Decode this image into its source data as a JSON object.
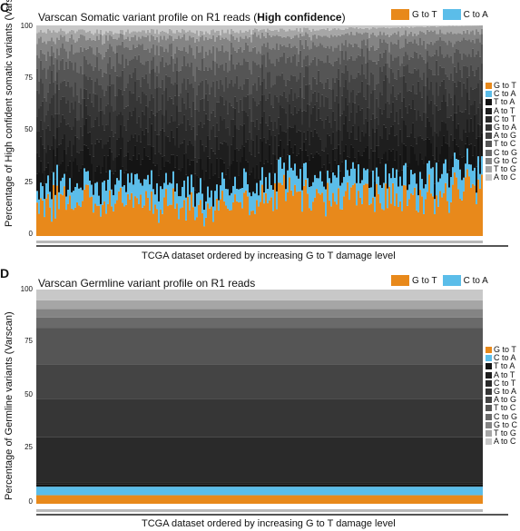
{
  "chart_data": [
    {
      "panel": "C",
      "type": "area",
      "title_main": "Varscan Somatic variant profile on R1 reads (",
      "title_bold": "High confidence",
      "title_end": ")",
      "xlabel": "TCGA dataset ordered by increasing G to T damage level",
      "ylabel": "Percentage of High confident somatic variants (Varscan)",
      "ylim": [
        0,
        100
      ],
      "yticks": [
        0,
        25,
        50,
        75,
        100
      ],
      "top_legend": [
        "G to T",
        "C to A"
      ],
      "side_legend": [
        "G to T",
        "C to A",
        "T to A",
        "A to T",
        "C to T",
        "G to A",
        "A to G",
        "T to C",
        "C to G",
        "G to C",
        "T to G",
        "A to C"
      ],
      "series_colors": [
        "#e8891b",
        "#5bbde9",
        "#141414",
        "#1e1e1e",
        "#2a2a2a",
        "#363636",
        "#444444",
        "#555555",
        "#6a6a6a",
        "#848484",
        "#a6a6a6",
        "#c8c8c8"
      ],
      "series": [
        {
          "name": "G to T",
          "mean_values": [
            14,
            16,
            13,
            20,
            18,
            22
          ]
        },
        {
          "name": "C to A",
          "mean_values": [
            8,
            9,
            8,
            9,
            10,
            10
          ]
        },
        {
          "name": "T to A",
          "mean_values": [
            10,
            10,
            11,
            9,
            10,
            10
          ]
        },
        {
          "name": "A to T",
          "mean_values": [
            10,
            10,
            10,
            9,
            10,
            10
          ]
        },
        {
          "name": "C to T",
          "mean_values": [
            10,
            10,
            10,
            10,
            10,
            9
          ]
        },
        {
          "name": "G to A",
          "mean_values": [
            10,
            9,
            10,
            9,
            10,
            9
          ]
        },
        {
          "name": "A to G",
          "mean_values": [
            9,
            9,
            10,
            9,
            9,
            9
          ]
        },
        {
          "name": "T to C",
          "mean_values": [
            9,
            9,
            9,
            9,
            8,
            8
          ]
        },
        {
          "name": "C to G",
          "mean_values": [
            7,
            7,
            7,
            6,
            6,
            6
          ]
        },
        {
          "name": "G to C",
          "mean_values": [
            6,
            5,
            6,
            5,
            5,
            4
          ]
        },
        {
          "name": "T to G",
          "mean_values": [
            4,
            3,
            3,
            3,
            3,
            3
          ]
        },
        {
          "name": "A to C",
          "mean_values": [
            3,
            3,
            3,
            2,
            1,
            0
          ]
        }
      ]
    },
    {
      "panel": "D",
      "type": "area",
      "title": "Varscan Germline variant profile on R1 reads",
      "xlabel": "TCGA dataset ordered by increasing G to T damage level",
      "ylabel": "Percentage of Germline variants (Varscan)",
      "ylim": [
        0,
        100
      ],
      "yticks": [
        0,
        25,
        50,
        75,
        100
      ],
      "top_legend": [
        "G to T",
        "C to A"
      ],
      "side_legend": [
        "G to T",
        "C to A",
        "T to A",
        "A to T",
        "C to T",
        "G to A",
        "A to G",
        "T to C",
        "C to G",
        "G to C",
        "T to G",
        "A to C"
      ],
      "series_colors": [
        "#e8891b",
        "#5bbde9",
        "#141414",
        "#1e1e1e",
        "#2a2a2a",
        "#363636",
        "#444444",
        "#555555",
        "#6a6a6a",
        "#848484",
        "#a6a6a6",
        "#c8c8c8"
      ],
      "series": [
        {
          "name": "G to T",
          "value": 4
        },
        {
          "name": "C to A",
          "value": 4
        },
        {
          "name": "T to A",
          "value": 1
        },
        {
          "name": "A to T",
          "value": 1
        },
        {
          "name": "C to T",
          "value": 21
        },
        {
          "name": "G to A",
          "value": 18
        },
        {
          "name": "A to G",
          "value": 16
        },
        {
          "name": "T to C",
          "value": 17
        },
        {
          "name": "C to G",
          "value": 5
        },
        {
          "name": "G to C",
          "value": 4
        },
        {
          "name": "T to G",
          "value": 4
        },
        {
          "name": "A to C",
          "value": 5
        }
      ]
    }
  ]
}
